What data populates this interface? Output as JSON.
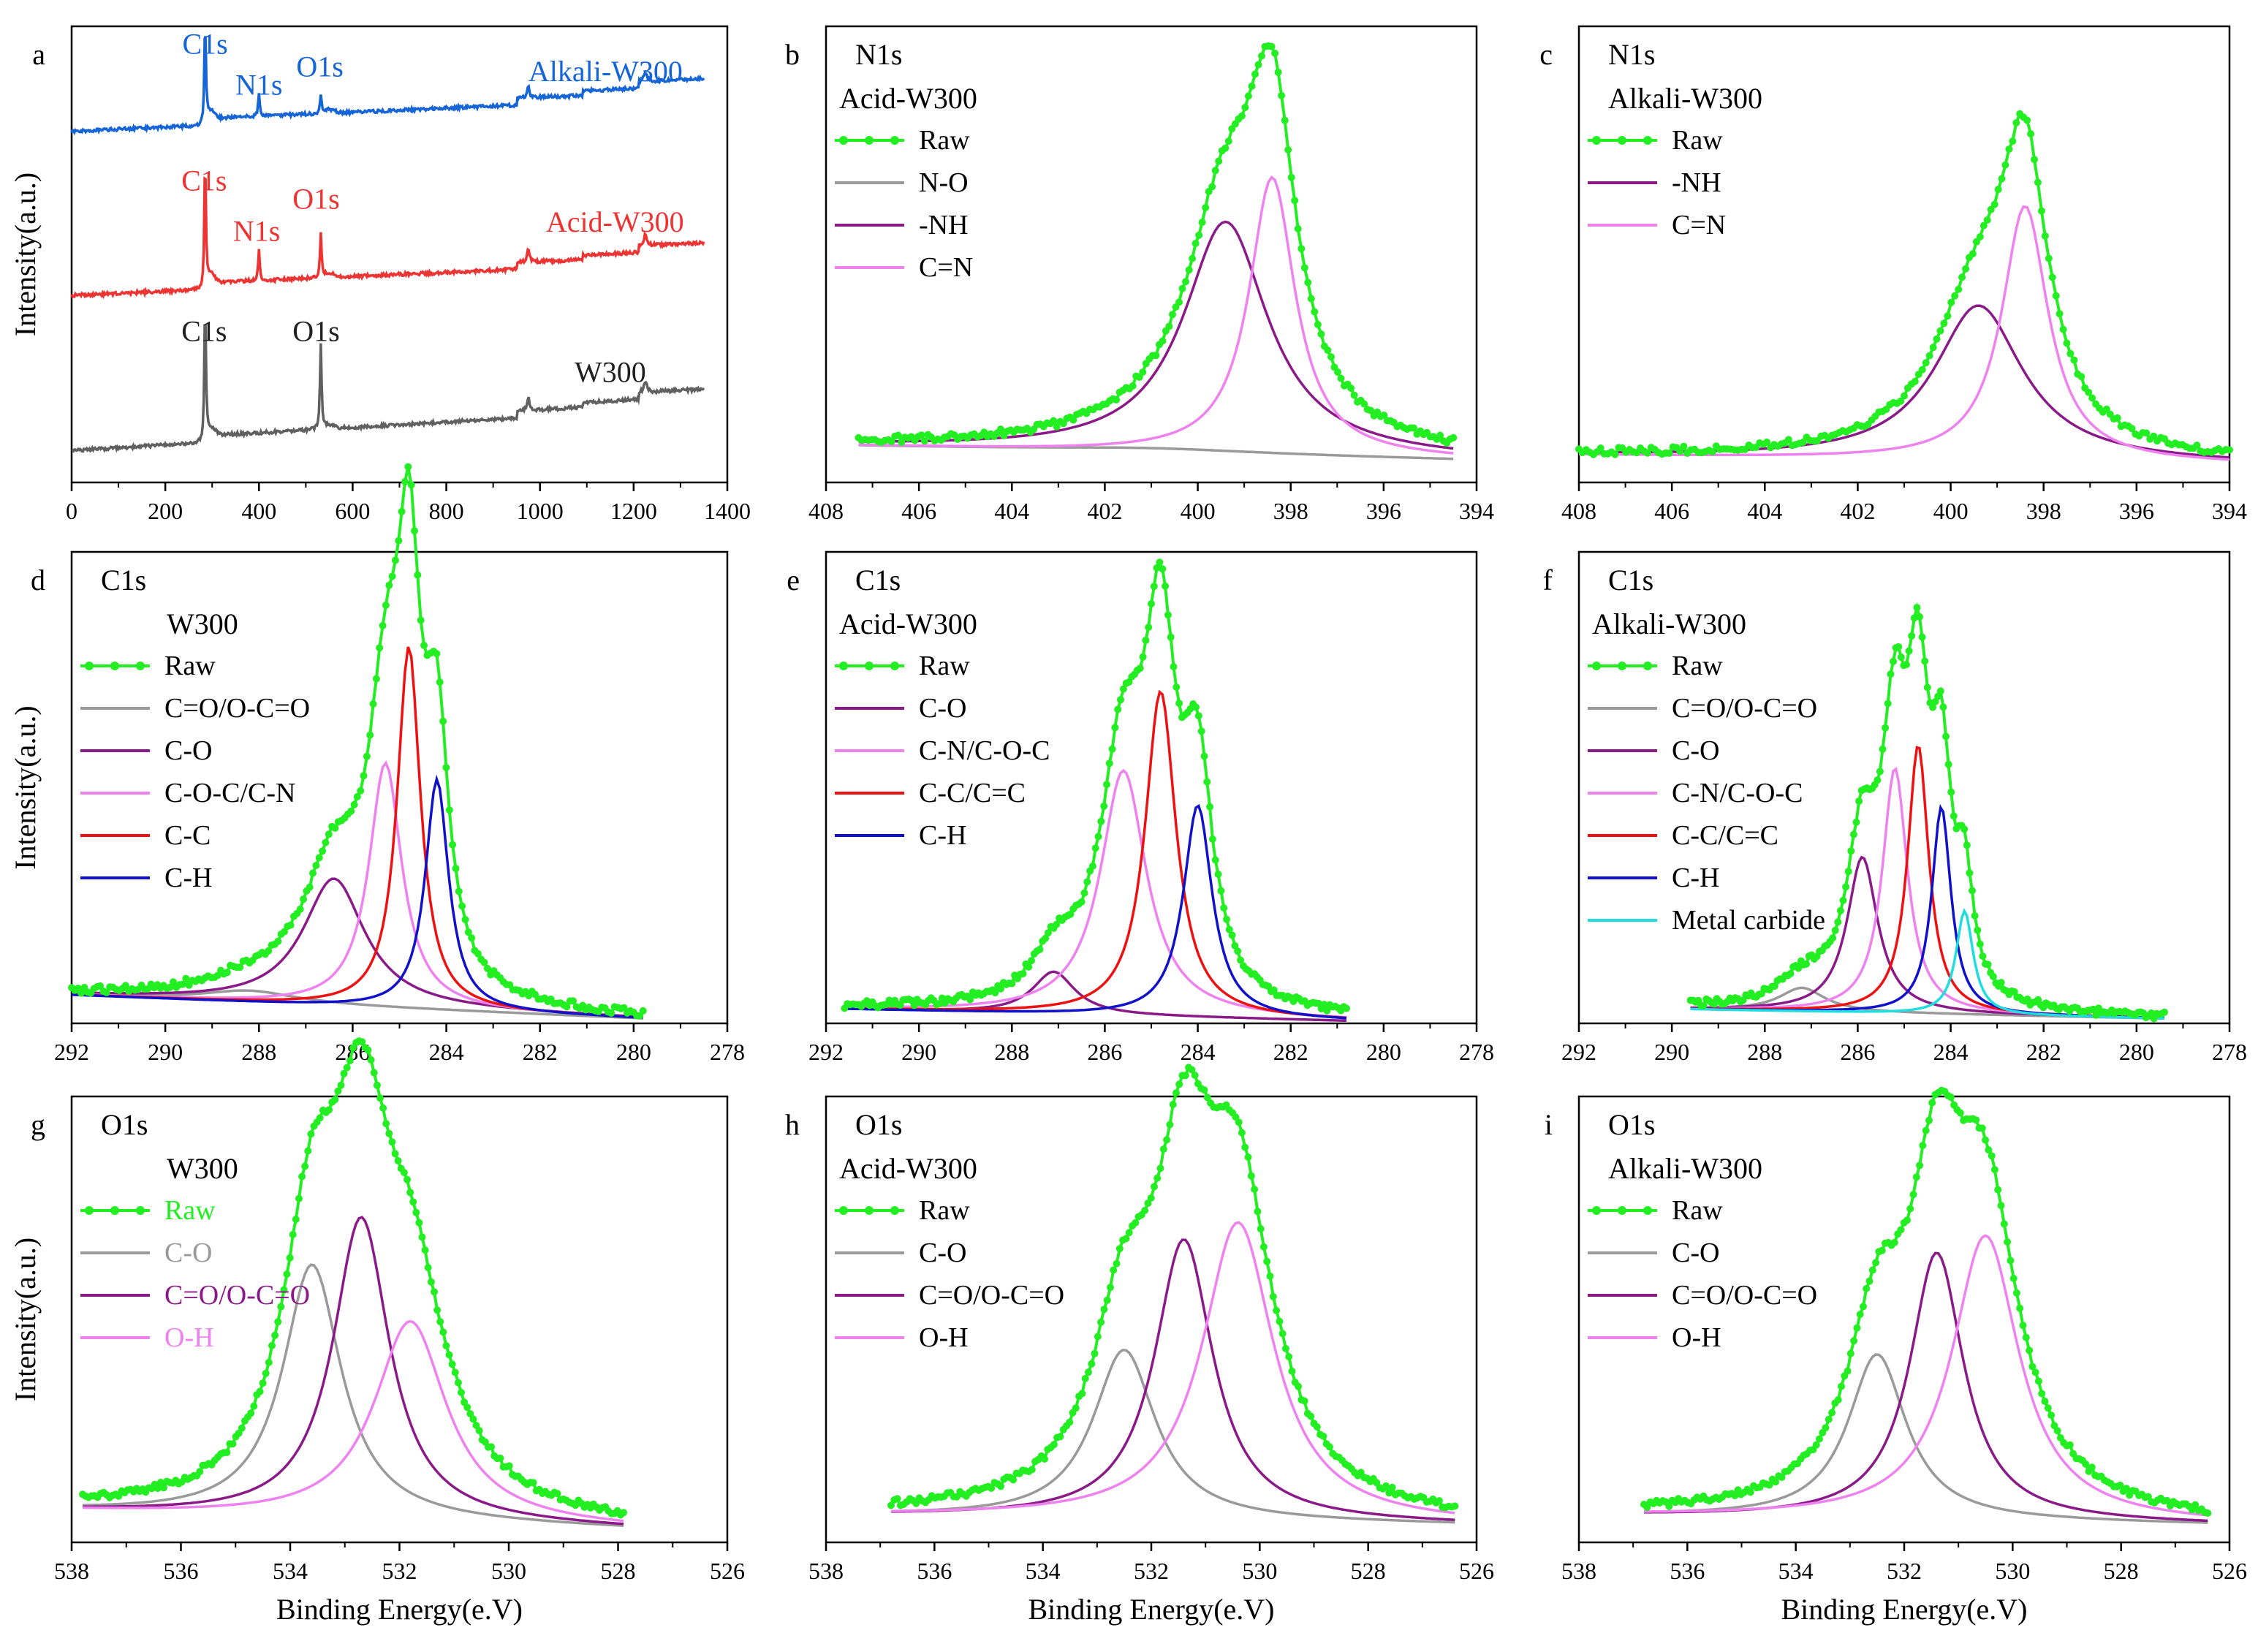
{
  "figure": {
    "ylabel": "Intensity(a.u.)",
    "xlabel": "Binding Energy(e.V)"
  },
  "chart_data": [
    {
      "id": "a",
      "letter": "a",
      "type": "line",
      "xlim": [
        0,
        1400
      ],
      "ylim": [
        0,
        100
      ],
      "xticks": [
        0,
        200,
        400,
        600,
        800,
        1000,
        1200,
        1400
      ],
      "xticklabels": [
        "0",
        "200",
        "400",
        "600",
        "800",
        "1000",
        "1200",
        "1400"
      ],
      "show_ylabel": true,
      "show_xlabel": false,
      "survey": [
        {
          "name": "Alkali-W300",
          "color": "#1565d8",
          "base": 77,
          "end": 83,
          "c1s": 22,
          "n1s": 5,
          "o1s": 4,
          "w4f": 4
        },
        {
          "name": "Acid-W300",
          "color": "#ee3333",
          "base": 41,
          "end": 47,
          "c1s": 28,
          "n1s": 7,
          "o1s": 10,
          "w4f": 5
        },
        {
          "name": "W300",
          "color": "#606060",
          "base": 7,
          "end": 15,
          "c1s": 30,
          "n1s": 0,
          "o1s": 19,
          "w4f": 5
        }
      ],
      "annotations": [
        {
          "text": "C1s",
          "color": "#1565d8",
          "x": 285,
          "y": 94
        },
        {
          "text": "N1s",
          "color": "#1565d8",
          "x": 400,
          "y": 85
        },
        {
          "text": "O1s",
          "color": "#1565d8",
          "x": 530,
          "y": 89
        },
        {
          "text": "Alkali-W300",
          "color": "#1565d8",
          "x": 1140,
          "y": 88
        },
        {
          "text": "C1s",
          "color": "#ee3333",
          "x": 283,
          "y": 64
        },
        {
          "text": "N1s",
          "color": "#ee3333",
          "x": 395,
          "y": 53
        },
        {
          "text": "O1s",
          "color": "#ee3333",
          "x": 522,
          "y": 60
        },
        {
          "text": "Acid-W300",
          "color": "#ee3333",
          "x": 1160,
          "y": 55
        },
        {
          "text": "C1s",
          "color": "#202020",
          "x": 283,
          "y": 31
        },
        {
          "text": "O1s",
          "color": "#202020",
          "x": 522,
          "y": 31
        },
        {
          "text": "W300",
          "color": "#202020",
          "x": 1150,
          "y": 22
        }
      ]
    },
    {
      "id": "b",
      "letter": "b",
      "type": "line",
      "title": "N1s",
      "sample": "Acid-W300",
      "xlim": [
        408,
        394
      ],
      "ylim": [
        0,
        100
      ],
      "range": [
        407.3,
        394.5
      ],
      "xticks": [
        408,
        406,
        404,
        402,
        400,
        398,
        396,
        394
      ],
      "xticklabels": [
        "408",
        "406",
        "404",
        "402",
        "400",
        "398",
        "396",
        "394"
      ],
      "show_ylabel": false,
      "show_xlabel": false,
      "baseline": {
        "left": 8,
        "right": 5
      },
      "components": [
        {
          "name": "N-O",
          "color": "#9a9a9a",
          "center": 401,
          "fwhm": 6,
          "amp": 1
        },
        {
          "name": "-NH",
          "color": "#8b1a89",
          "center": 399.4,
          "fwhm": 2.2,
          "amp": 51
        },
        {
          "name": "C=N",
          "color": "#ee82ee",
          "center": 398.4,
          "fwhm": 1.2,
          "amp": 61
        }
      ],
      "legend": [
        {
          "label": "Raw",
          "color": "#22ee22",
          "marker": true
        },
        {
          "label": "N-O",
          "color": "#9a9a9a"
        },
        {
          "label": "-NH",
          "color": "#8b1a89"
        },
        {
          "label": "C=N",
          "color": "#ee82ee"
        }
      ]
    },
    {
      "id": "c",
      "letter": "c",
      "type": "line",
      "title": "N1s",
      "sample": "Alkali-W300",
      "xlim": [
        408,
        394
      ],
      "ylim": [
        0,
        100
      ],
      "range": [
        408,
        394
      ],
      "xticks": [
        408,
        406,
        404,
        402,
        400,
        398,
        396,
        394
      ],
      "xticklabels": [
        "408",
        "406",
        "404",
        "402",
        "400",
        "398",
        "396",
        "394"
      ],
      "show_ylabel": false,
      "show_xlabel": false,
      "baseline": {
        "left": 6,
        "right": 4
      },
      "components": [
        {
          "name": "-NH",
          "color": "#8b1a89",
          "center": 399.4,
          "fwhm": 2.3,
          "amp": 34
        },
        {
          "name": "C=N",
          "color": "#ee82ee",
          "center": 398.4,
          "fwhm": 1.2,
          "amp": 56
        }
      ],
      "legend": [
        {
          "label": "Raw",
          "color": "#22ee22",
          "marker": true
        },
        {
          "label": "-NH",
          "color": "#8b1a89"
        },
        {
          "label": "C=N",
          "color": "#ee82ee"
        }
      ]
    },
    {
      "id": "d",
      "letter": "d",
      "type": "line",
      "title": "C1s",
      "sample": "W300",
      "xlim": [
        292,
        278
      ],
      "ylim": [
        0,
        100
      ],
      "range": [
        292,
        279.8
      ],
      "xticks": [
        292,
        290,
        288,
        286,
        284,
        282,
        280,
        278
      ],
      "xticklabels": [
        "292",
        "290",
        "288",
        "286",
        "284",
        "282",
        "280",
        "278"
      ],
      "show_ylabel": true,
      "show_xlabel": false,
      "baseline": {
        "left": 6,
        "right": 1
      },
      "components": [
        {
          "name": "C=O/O-C=O",
          "color": "#9a9a9a",
          "center": 288.2,
          "fwhm": 2.5,
          "amp": 2.5
        },
        {
          "name": "C-O",
          "color": "#8b1a89",
          "center": 286.4,
          "fwhm": 1.6,
          "amp": 27
        },
        {
          "name": "C-O-C/C-N",
          "color": "#ee82ee",
          "center": 285.3,
          "fwhm": 0.85,
          "amp": 52
        },
        {
          "name": "C-C",
          "color": "#ee1111",
          "center": 284.8,
          "fwhm": 0.6,
          "amp": 77
        },
        {
          "name": "C-H",
          "color": "#1111cc",
          "center": 284.2,
          "fwhm": 0.6,
          "amp": 49
        }
      ],
      "legend": [
        {
          "label": "Raw",
          "color": "#22ee22",
          "marker": true
        },
        {
          "label": "C=O/O-C=O",
          "color": "#9a9a9a"
        },
        {
          "label": "C-O",
          "color": "#8b1a89"
        },
        {
          "label": "C-O-C/C-N",
          "color": "#ee82ee"
        },
        {
          "label": "C-C",
          "color": "#ee1111"
        },
        {
          "label": "C-H",
          "color": "#1111cc"
        }
      ]
    },
    {
      "id": "e",
      "letter": "e",
      "type": "line",
      "title": "C1s",
      "sample": "Acid-W300",
      "xlim": [
        292,
        278
      ],
      "ylim": [
        0,
        100
      ],
      "range": [
        291.6,
        280.8
      ],
      "xticks": [
        292,
        290,
        288,
        286,
        284,
        282,
        280,
        278
      ],
      "xticklabels": [
        "292",
        "290",
        "288",
        "286",
        "284",
        "282",
        "280",
        "278"
      ],
      "show_ylabel": false,
      "show_xlabel": false,
      "baseline": {
        "left": 3,
        "right": 0.5
      },
      "components": [
        {
          "name": "C-O",
          "color": "#8b1a89",
          "center": 287.1,
          "fwhm": 1.1,
          "amp": 9
        },
        {
          "name": "C-N/C-O-C",
          "color": "#ee82ee",
          "center": 285.6,
          "fwhm": 1.2,
          "amp": 52
        },
        {
          "name": "C-C/C=C",
          "color": "#ee1111",
          "center": 284.8,
          "fwhm": 0.8,
          "amp": 69
        },
        {
          "name": "C-H",
          "color": "#1111cc",
          "center": 284.0,
          "fwhm": 0.75,
          "amp": 45
        }
      ],
      "legend": [
        {
          "label": "Raw",
          "color": "#22ee22",
          "marker": true
        },
        {
          "label": "C-O",
          "color": "#8b1a89"
        },
        {
          "label": "C-N/C-O-C",
          "color": "#ee82ee"
        },
        {
          "label": "C-C/C=C",
          "color": "#ee1111"
        },
        {
          "label": "C-H",
          "color": "#1111cc"
        }
      ]
    },
    {
      "id": "f",
      "letter": "f",
      "type": "line",
      "title": "C1s",
      "sample": "Alkali-W300",
      "xlim": [
        292,
        278
      ],
      "ylim": [
        0,
        100
      ],
      "range": [
        289.6,
        279.4
      ],
      "xticks": [
        292,
        290,
        288,
        286,
        284,
        282,
        280,
        278
      ],
      "xticklabels": [
        "292",
        "290",
        "288",
        "286",
        "284",
        "282",
        "280",
        "278"
      ],
      "show_ylabel": false,
      "show_xlabel": false,
      "baseline": {
        "left": 3,
        "right": 1
      },
      "components": [
        {
          "name": "C=O/O-C=O",
          "color": "#9a9a9a",
          "center": 287.2,
          "fwhm": 1.2,
          "amp": 5
        },
        {
          "name": "C-O",
          "color": "#8b1a89",
          "center": 285.9,
          "fwhm": 0.8,
          "amp": 33
        },
        {
          "name": "C-N/C-O-C",
          "color": "#ee82ee",
          "center": 285.2,
          "fwhm": 0.65,
          "amp": 52
        },
        {
          "name": "C-C/C=C",
          "color": "#ee1111",
          "center": 284.7,
          "fwhm": 0.55,
          "amp": 57
        },
        {
          "name": "C-H",
          "color": "#1111cc",
          "center": 284.2,
          "fwhm": 0.5,
          "amp": 44
        },
        {
          "name": "Metal carbide",
          "color": "#22dddd",
          "center": 283.7,
          "fwhm": 0.45,
          "amp": 22
        }
      ],
      "legend": [
        {
          "label": "Raw",
          "color": "#22ee22",
          "marker": true
        },
        {
          "label": "C=O/O-C=O",
          "color": "#9a9a9a"
        },
        {
          "label": "C-O",
          "color": "#8b1a89"
        },
        {
          "label": "C-N/C-O-C",
          "color": "#ee82ee"
        },
        {
          "label": "C-C/C=C",
          "color": "#ee1111"
        },
        {
          "label": "C-H",
          "color": "#1111cc"
        },
        {
          "label": "Metal carbide",
          "color": "#22dddd"
        }
      ]
    },
    {
      "id": "g",
      "letter": "g",
      "type": "line",
      "title": "O1s",
      "sample": "W300",
      "xlim": [
        538,
        526
      ],
      "ylim": [
        0,
        100
      ],
      "range": [
        537.8,
        527.9
      ],
      "xticks": [
        538,
        536,
        534,
        532,
        530,
        528,
        526
      ],
      "xticklabels": [
        "538",
        "536",
        "534",
        "532",
        "530",
        "528",
        "526"
      ],
      "show_ylabel": true,
      "show_xlabel": true,
      "baseline": {
        "left": 7,
        "right": 3
      },
      "legend_text_colored": true,
      "components": [
        {
          "name": "C-O",
          "color": "#9a9a9a",
          "center": 533.6,
          "fwhm": 1.3,
          "amp": 57
        },
        {
          "name": "C=O/O-C=O",
          "color": "#8b1a89",
          "center": 532.7,
          "fwhm": 1.25,
          "amp": 68
        },
        {
          "name": "O-H",
          "color": "#ee82ee",
          "center": 531.8,
          "fwhm": 1.6,
          "amp": 45
        }
      ],
      "legend": [
        {
          "label": "Raw",
          "color": "#22ee22",
          "marker": true
        },
        {
          "label": "C-O",
          "color": "#9a9a9a"
        },
        {
          "label": "C=O/O-C=O",
          "color": "#8b1a89"
        },
        {
          "label": "O-H",
          "color": "#ee82ee"
        }
      ]
    },
    {
      "id": "h",
      "letter": "h",
      "type": "line",
      "title": "O1s",
      "sample": "Acid-W300",
      "xlim": [
        538,
        526
      ],
      "ylim": [
        0,
        100
      ],
      "range": [
        536.8,
        526.4
      ],
      "xticks": [
        538,
        536,
        534,
        532,
        530,
        528,
        526
      ],
      "xticklabels": [
        "538",
        "536",
        "534",
        "532",
        "530",
        "528",
        "526"
      ],
      "show_ylabel": false,
      "show_xlabel": true,
      "baseline": {
        "left": 6,
        "right": 4
      },
      "components": [
        {
          "name": "C-O",
          "color": "#9a9a9a",
          "center": 532.5,
          "fwhm": 1.4,
          "amp": 38
        },
        {
          "name": "C=O/O-C=O",
          "color": "#8b1a89",
          "center": 531.4,
          "fwhm": 1.3,
          "amp": 63
        },
        {
          "name": "O-H",
          "color": "#ee82ee",
          "center": 530.4,
          "fwhm": 1.6,
          "amp": 67
        }
      ],
      "legend": [
        {
          "label": "Raw",
          "color": "#22ee22",
          "marker": true
        },
        {
          "label": "C-O",
          "color": "#9a9a9a"
        },
        {
          "label": "C=O/O-C=O",
          "color": "#8b1a89"
        },
        {
          "label": "O-H",
          "color": "#ee82ee"
        }
      ]
    },
    {
      "id": "i",
      "letter": "i",
      "type": "line",
      "title": "O1s",
      "sample": "Alkali-W300",
      "xlim": [
        538,
        526
      ],
      "ylim": [
        0,
        100
      ],
      "range": [
        536.8,
        526.4
      ],
      "xticks": [
        538,
        536,
        534,
        532,
        530,
        528,
        526
      ],
      "xticklabels": [
        "538",
        "536",
        "534",
        "532",
        "530",
        "528",
        "526"
      ],
      "show_ylabel": false,
      "show_xlabel": true,
      "baseline": {
        "left": 6,
        "right": 4
      },
      "components": [
        {
          "name": "C-O",
          "color": "#9a9a9a",
          "center": 532.5,
          "fwhm": 1.3,
          "amp": 37
        },
        {
          "name": "C=O/O-C=O",
          "color": "#8b1a89",
          "center": 531.4,
          "fwhm": 1.2,
          "amp": 60
        },
        {
          "name": "O-H",
          "color": "#ee82ee",
          "center": 530.5,
          "fwhm": 1.5,
          "amp": 64
        }
      ],
      "legend": [
        {
          "label": "Raw",
          "color": "#22ee22",
          "marker": true
        },
        {
          "label": "C-O",
          "color": "#9a9a9a"
        },
        {
          "label": "C=O/O-C=O",
          "color": "#8b1a89"
        },
        {
          "label": "O-H",
          "color": "#ee82ee"
        }
      ]
    }
  ]
}
